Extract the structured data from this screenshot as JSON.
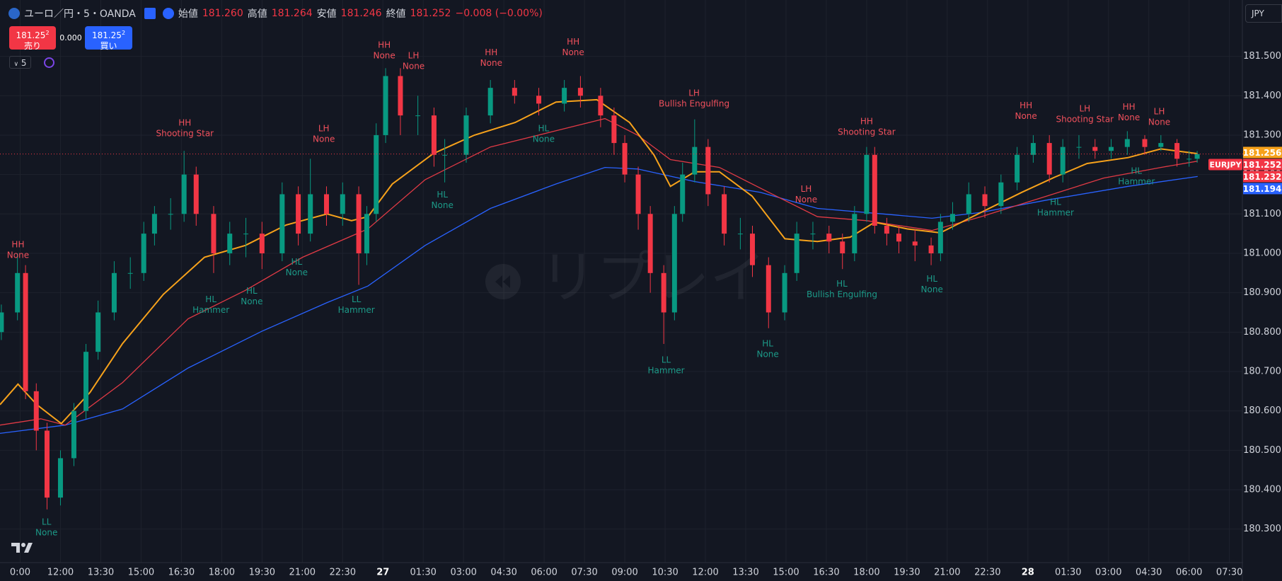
{
  "header": {
    "symbol": "ユーロ／円・5・OANDA",
    "open_label": "始値",
    "open": "181.260",
    "high_label": "高値",
    "high": "181.264",
    "low_label": "安値",
    "low": "181.246",
    "close_label": "終値",
    "close": "181.252",
    "change": "−0.008 (−0.00%)",
    "sell_price": "181.25",
    "sell_pip": "2",
    "sell_label": "売り",
    "spread": "0.000",
    "buy_price": "181.25",
    "buy_pip": "2",
    "buy_label": "買い",
    "interval": "5",
    "currency": "JPY",
    "watermark": "リプレイ"
  },
  "chart_data": {
    "type": "candlestick",
    "up_color": "#089981",
    "down_color": "#f23645",
    "grid": true,
    "x": [
      9.8,
      10.4,
      10.7,
      11.1,
      11.5,
      12.0,
      12.5,
      12.95,
      13.4,
      14.0,
      14.6,
      15.1,
      15.5,
      16.1,
      16.6,
      17.05,
      17.7,
      18.3,
      18.9,
      19.5,
      20.25,
      20.85,
      21.3,
      21.9,
      22.5,
      23.1,
      23.4,
      23.75,
      24.1,
      24.65,
      25.3,
      25.9,
      26.3,
      27.1,
      28.0,
      28.9,
      29.8,
      30.75,
      31.35,
      32.1,
      32.6,
      33.0,
      33.5,
      33.95,
      34.45,
      34.85,
      35.15,
      35.6,
      36.1,
      36.7,
      37.3,
      37.75,
      38.35,
      38.95,
      39.4,
      40.0,
      40.6,
      41.1,
      41.55,
      42.0,
      42.3,
      42.75,
      43.2,
      43.8,
      44.4,
      44.75,
      45.2,
      45.8,
      46.4,
      47.0,
      47.6,
      48.2,
      48.8,
      49.3,
      49.9,
      50.5,
      51.1,
      51.7,
      52.35,
      52.95,
      53.55,
      54.0,
      54.3
    ],
    "open": [
      180.8,
      180.85,
      180.95,
      180.65,
      180.55,
      180.38,
      180.48,
      180.6,
      180.75,
      180.85,
      180.95,
      180.95,
      181.05,
      181.1,
      181.1,
      181.2,
      181.1,
      181.0,
      181.05,
      181.05,
      181.0,
      181.15,
      181.05,
      181.15,
      181.1,
      181.15,
      181.0,
      181.1,
      181.3,
      181.45,
      181.35,
      181.35,
      181.25,
      181.25,
      181.35,
      181.42,
      181.4,
      181.38,
      181.42,
      181.4,
      181.35,
      181.28,
      181.2,
      181.1,
      180.95,
      180.85,
      181.1,
      181.2,
      181.27,
      181.15,
      181.05,
      181.05,
      180.97,
      180.85,
      180.95,
      181.05,
      181.05,
      181.03,
      181.0,
      181.1,
      181.25,
      181.07,
      181.05,
      181.03,
      181.02,
      181.0,
      181.08,
      181.1,
      181.15,
      181.12,
      181.18,
      181.25,
      181.28,
      181.2,
      181.27,
      181.27,
      181.26,
      181.27,
      181.29,
      181.27,
      181.28,
      181.24,
      181.24
    ],
    "high": [
      180.87,
      181.0,
      180.97,
      180.67,
      180.57,
      180.5,
      180.62,
      180.77,
      180.88,
      180.98,
      180.99,
      181.08,
      181.12,
      181.14,
      181.26,
      181.22,
      181.12,
      181.08,
      181.09,
      181.08,
      181.18,
      181.17,
      181.24,
      181.17,
      181.18,
      181.17,
      181.12,
      181.33,
      181.47,
      181.47,
      181.4,
      181.37,
      181.29,
      181.37,
      181.44,
      181.44,
      181.42,
      181.44,
      181.45,
      181.42,
      181.37,
      181.3,
      181.22,
      181.12,
      180.97,
      181.12,
      181.23,
      181.34,
      181.29,
      181.17,
      181.09,
      181.07,
      180.99,
      180.97,
      181.08,
      181.08,
      181.07,
      181.05,
      181.12,
      181.27,
      181.27,
      181.09,
      181.07,
      181.06,
      181.04,
      181.1,
      181.13,
      181.18,
      181.17,
      181.2,
      181.27,
      181.3,
      181.3,
      181.29,
      181.3,
      181.29,
      181.29,
      181.31,
      181.3,
      181.3,
      181.29,
      181.26,
      181.26
    ],
    "low": [
      180.78,
      180.83,
      180.63,
      180.5,
      180.35,
      180.36,
      180.46,
      180.58,
      180.73,
      180.83,
      180.91,
      180.93,
      181.02,
      181.06,
      181.08,
      181.07,
      180.95,
      180.97,
      180.99,
      180.96,
      180.98,
      181.02,
      181.03,
      181.07,
      181.07,
      180.92,
      180.97,
      181.08,
      181.28,
      181.3,
      181.3,
      181.22,
      181.18,
      181.23,
      181.33,
      181.38,
      181.35,
      181.36,
      181.37,
      181.32,
      181.25,
      181.18,
      181.06,
      180.9,
      180.77,
      180.83,
      181.08,
      181.18,
      181.12,
      181.02,
      181.01,
      180.94,
      180.81,
      180.83,
      180.93,
      181.01,
      181.0,
      180.96,
      180.98,
      181.08,
      181.05,
      181.02,
      181.0,
      180.98,
      180.97,
      180.98,
      181.06,
      181.08,
      181.09,
      181.1,
      181.16,
      181.23,
      181.18,
      181.18,
      181.24,
      181.24,
      181.24,
      181.25,
      181.25,
      181.26,
      181.22,
      181.22,
      181.23
    ],
    "close": [
      180.85,
      180.95,
      180.65,
      180.55,
      180.38,
      180.48,
      180.6,
      180.75,
      180.85,
      180.95,
      180.95,
      181.05,
      181.1,
      181.1,
      181.2,
      181.1,
      181.0,
      181.05,
      181.05,
      181.0,
      181.15,
      181.05,
      181.15,
      181.1,
      181.15,
      181.0,
      181.1,
      181.3,
      181.45,
      181.35,
      181.35,
      181.25,
      181.25,
      181.35,
      181.42,
      181.4,
      181.38,
      181.42,
      181.4,
      181.35,
      181.28,
      181.2,
      181.1,
      180.95,
      180.85,
      181.1,
      181.2,
      181.27,
      181.15,
      181.05,
      181.05,
      180.97,
      180.85,
      180.95,
      181.05,
      181.05,
      181.03,
      181.0,
      181.1,
      181.25,
      181.07,
      181.05,
      181.03,
      181.02,
      181.0,
      181.08,
      181.1,
      181.15,
      181.12,
      181.18,
      181.25,
      181.28,
      181.2,
      181.27,
      181.27,
      181.26,
      181.27,
      181.29,
      181.27,
      181.28,
      181.24,
      181.24,
      181.252
    ],
    "lines": [
      {
        "color": "#2962ff",
        "x": [
          9.75,
          12.18,
          14.31,
          16.75,
          19.49,
          21.92,
          23.44,
          25.57,
          28.0,
          30.44,
          32.26,
          33.48,
          35.61,
          38.04,
          40.17,
          42.61,
          44.43,
          46.26,
          48.69,
          51.73,
          54.32
        ],
        "values": [
          180.543,
          180.564,
          180.605,
          180.709,
          180.802,
          180.875,
          180.917,
          181.02,
          181.114,
          181.176,
          181.218,
          181.214,
          181.182,
          181.155,
          181.114,
          181.1,
          181.089,
          181.104,
          181.135,
          181.17,
          181.195
        ]
      },
      {
        "color": "#e03a45",
        "x": [
          9.75,
          11.27,
          12.18,
          14.31,
          16.75,
          18.88,
          21.01,
          23.44,
          25.57,
          28.0,
          30.44,
          32.26,
          33.48,
          34.7,
          36.52,
          38.35,
          40.17,
          42.0,
          44.43,
          46.26,
          48.69,
          50.82,
          52.95,
          54.32
        ],
        "values": [
          180.564,
          180.58,
          180.564,
          180.672,
          180.834,
          180.906,
          180.99,
          181.062,
          181.187,
          181.27,
          181.311,
          181.342,
          181.3,
          181.238,
          181.218,
          181.155,
          181.093,
          181.083,
          181.058,
          181.093,
          181.145,
          181.191,
          181.218,
          181.234
        ]
      },
      {
        "color": "#f7a21b",
        "x": [
          9.75,
          10.42,
          11.12,
          12.03,
          13.1,
          14.31,
          15.83,
          17.36,
          18.88,
          20.4,
          21.92,
          22.83,
          23.44,
          24.35,
          25.87,
          27.4,
          28.92,
          30.44,
          31.96,
          33.18,
          34.09,
          34.7,
          35.61,
          36.52,
          37.74,
          38.96,
          40.17,
          41.39,
          42.3,
          43.52,
          44.74,
          46.26,
          47.78,
          48.99,
          50.21,
          51.73,
          52.95,
          54.32
        ],
        "values": [
          180.616,
          180.668,
          180.616,
          180.568,
          180.647,
          180.771,
          180.896,
          180.99,
          181.02,
          181.072,
          181.1,
          181.083,
          181.093,
          181.176,
          181.253,
          181.3,
          181.332,
          181.384,
          181.39,
          181.332,
          181.249,
          181.17,
          181.207,
          181.207,
          181.145,
          181.037,
          181.03,
          181.041,
          181.079,
          181.062,
          181.052,
          181.104,
          181.155,
          181.193,
          181.228,
          181.243,
          181.265,
          181.253
        ]
      }
    ],
    "xlim": [
      9.75,
      55.93
    ],
    "ylim": [
      180.215,
      181.643
    ],
    "xticks": [
      {
        "value": 10.5,
        "label": "0:00"
      },
      {
        "value": 12,
        "label": "12:00"
      },
      {
        "value": 13.5,
        "label": "13:30"
      },
      {
        "value": 15,
        "label": "15:00"
      },
      {
        "value": 16.5,
        "label": "16:30"
      },
      {
        "value": 18,
        "label": "18:00"
      },
      {
        "value": 19.5,
        "label": "19:30"
      },
      {
        "value": 21,
        "label": "21:00"
      },
      {
        "value": 22.5,
        "label": "22:30"
      },
      {
        "value": 24,
        "label": "27"
      },
      {
        "value": 25.5,
        "label": "01:30"
      },
      {
        "value": 27,
        "label": "03:00"
      },
      {
        "value": 28.5,
        "label": "04:30"
      },
      {
        "value": 30,
        "label": "06:00"
      },
      {
        "value": 31.5,
        "label": "07:30"
      },
      {
        "value": 33,
        "label": "09:00"
      },
      {
        "value": 34.5,
        "label": "10:30"
      },
      {
        "value": 36,
        "label": "12:00"
      },
      {
        "value": 37.5,
        "label": "13:30"
      },
      {
        "value": 39,
        "label": "15:00"
      },
      {
        "value": 40.5,
        "label": "16:30"
      },
      {
        "value": 42,
        "label": "18:00"
      },
      {
        "value": 43.5,
        "label": "19:30"
      },
      {
        "value": 45,
        "label": "21:00"
      },
      {
        "value": 46.5,
        "label": "22:30"
      },
      {
        "value": 48,
        "label": "28"
      },
      {
        "value": 49.5,
        "label": "01:30"
      },
      {
        "value": 51,
        "label": "03:00"
      },
      {
        "value": 52.5,
        "label": "04:30"
      },
      {
        "value": 54,
        "label": "06:00"
      },
      {
        "value": 55.5,
        "label": "07:30"
      }
    ],
    "yticks": [
      {
        "value": 180.3,
        "label": "180.300"
      },
      {
        "value": 180.4,
        "label": "180.400"
      },
      {
        "value": 180.5,
        "label": "180.500"
      },
      {
        "value": 180.6,
        "label": "180.600"
      },
      {
        "value": 180.7,
        "label": "180.700"
      },
      {
        "value": 180.8,
        "label": "180.800"
      },
      {
        "value": 180.9,
        "label": "180.900"
      },
      {
        "value": 181.0,
        "label": "181.000"
      },
      {
        "value": 181.1,
        "label": "181.100"
      },
      {
        "value": 181.2,
        "label": "181.200"
      },
      {
        "value": 181.3,
        "label": "181.300"
      },
      {
        "value": 181.4,
        "label": "181.400"
      },
      {
        "value": 181.5,
        "label": "181.500"
      }
    ],
    "annotations": [
      {
        "text": [
          "HH",
          "None"
        ],
        "x": 10.42,
        "y": 181.008,
        "color": "#f0505c"
      },
      {
        "text": [
          "HH",
          "Shooting Star"
        ],
        "x": 16.63,
        "y": 181.317,
        "color": "#f0505c"
      },
      {
        "text": [
          "LH",
          "None"
        ],
        "x": 21.8,
        "y": 181.303,
        "color": "#f0505c"
      },
      {
        "text": [
          "HH",
          "None"
        ],
        "x": 24.05,
        "y": 181.515,
        "color": "#f0505c"
      },
      {
        "text": [
          "LH",
          "None"
        ],
        "x": 25.14,
        "y": 181.488,
        "color": "#f0505c"
      },
      {
        "text": [
          "HH",
          "None"
        ],
        "x": 28.03,
        "y": 181.496,
        "color": "#f0505c"
      },
      {
        "text": [
          "HH",
          "None"
        ],
        "x": 31.08,
        "y": 181.523,
        "color": "#f0505c"
      },
      {
        "text": [
          "LH",
          "Bullish Engulfing"
        ],
        "x": 35.58,
        "y": 181.392,
        "color": "#f0505c"
      },
      {
        "text": [
          "LH",
          "None"
        ],
        "x": 39.75,
        "y": 181.149,
        "color": "#f0505c"
      },
      {
        "text": [
          "HH",
          "Shooting Star"
        ],
        "x": 42.0,
        "y": 181.321,
        "color": "#f0505c"
      },
      {
        "text": [
          "HH",
          "None"
        ],
        "x": 47.93,
        "y": 181.361,
        "color": "#f0505c"
      },
      {
        "text": [
          "LH",
          "Shooting Star"
        ],
        "x": 50.12,
        "y": 181.353,
        "color": "#f0505c"
      },
      {
        "text": [
          "HH",
          "None"
        ],
        "x": 51.76,
        "y": 181.357,
        "color": "#f0505c"
      },
      {
        "text": [
          "LH",
          "None"
        ],
        "x": 52.89,
        "y": 181.346,
        "color": "#f0505c"
      },
      {
        "text": [
          "LL",
          "None"
        ],
        "x": 11.48,
        "y": 180.304,
        "color": "#1c9a88"
      },
      {
        "text": [
          "HL",
          "Hammer"
        ],
        "x": 17.6,
        "y": 180.869,
        "color": "#1c9a88"
      },
      {
        "text": [
          "HL",
          "None"
        ],
        "x": 19.12,
        "y": 180.89,
        "color": "#1c9a88"
      },
      {
        "text": [
          "HL",
          "None"
        ],
        "x": 20.79,
        "y": 180.964,
        "color": "#1c9a88"
      },
      {
        "text": [
          "LL",
          "Hammer"
        ],
        "x": 23.01,
        "y": 180.869,
        "color": "#1c9a88"
      },
      {
        "text": [
          "HL",
          "None"
        ],
        "x": 26.21,
        "y": 181.135,
        "color": "#1c9a88"
      },
      {
        "text": [
          "HL",
          "None"
        ],
        "x": 29.98,
        "y": 181.303,
        "color": "#1c9a88"
      },
      {
        "text": [
          "LL",
          "Hammer"
        ],
        "x": 34.54,
        "y": 180.715,
        "color": "#1c9a88"
      },
      {
        "text": [
          "HL",
          "None"
        ],
        "x": 38.32,
        "y": 180.757,
        "color": "#1c9a88"
      },
      {
        "text": [
          "HL",
          "Bullish Engulfing"
        ],
        "x": 41.08,
        "y": 180.908,
        "color": "#1c9a88"
      },
      {
        "text": [
          "HL",
          "None"
        ],
        "x": 44.43,
        "y": 180.921,
        "color": "#1c9a88"
      },
      {
        "text": [
          "HL",
          "Hammer"
        ],
        "x": 49.03,
        "y": 181.116,
        "color": "#1c9a88"
      },
      {
        "text": [
          "HL",
          "Hammer"
        ],
        "x": 52.04,
        "y": 181.195,
        "color": "#1c9a88"
      }
    ],
    "price_tags": [
      {
        "value": 181.256,
        "color": "#f7a21b"
      },
      {
        "value": 181.252,
        "color": "#f23645"
      },
      {
        "value": 181.232,
        "color": "#f23645"
      },
      {
        "value": 181.194,
        "color": "#2962ff"
      }
    ],
    "symbol_tag": "EURJPY"
  }
}
